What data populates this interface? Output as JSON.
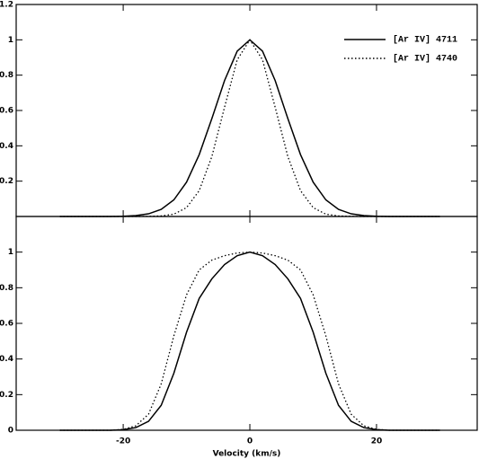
{
  "chart_data": [
    {
      "type": "line",
      "x": [
        -30,
        -28,
        -26,
        -24,
        -22,
        -20,
        -18,
        -16,
        -14,
        -12,
        -10,
        -8,
        -6,
        -4,
        -2,
        0,
        2,
        4,
        6,
        8,
        10,
        12,
        14,
        16,
        18,
        20,
        22,
        24,
        26,
        28,
        30
      ],
      "series": [
        {
          "name": "[Ar IV] 4711",
          "color": "#000000",
          "dash": "solid",
          "values": [
            0,
            0,
            0,
            0,
            0,
            0.001,
            0.005,
            0.015,
            0.04,
            0.094,
            0.194,
            0.35,
            0.554,
            0.769,
            0.936,
            1,
            0.936,
            0.769,
            0.554,
            0.35,
            0.194,
            0.094,
            0.04,
            0.015,
            0.005,
            0.001,
            0,
            0,
            0,
            0,
            0
          ]
        },
        {
          "name": "[Ar IV] 4740",
          "color": "#000000",
          "dash": "dotted",
          "values": [
            0,
            0,
            0,
            0,
            0,
            0,
            0,
            0.001,
            0.003,
            0.013,
            0.05,
            0.146,
            0.339,
            0.618,
            0.887,
            1,
            0.887,
            0.618,
            0.339,
            0.146,
            0.05,
            0.013,
            0.003,
            0.001,
            0,
            0,
            0,
            0,
            0,
            0,
            0
          ]
        }
      ],
      "xlim": [
        -36.9,
        35.9
      ],
      "ylim": [
        0,
        1.2
      ],
      "yticks": [
        0.2,
        0.4,
        0.6,
        0.8,
        1,
        1.2
      ],
      "legend": "top-right"
    },
    {
      "type": "line",
      "x": [
        -30,
        -28,
        -26,
        -24,
        -22,
        -20,
        -18,
        -16,
        -14,
        -12,
        -10,
        -8,
        -6,
        -4,
        -2,
        0,
        2,
        4,
        6,
        8,
        10,
        12,
        14,
        16,
        18,
        20,
        22,
        24,
        26,
        28,
        30
      ],
      "series": [
        {
          "color": "#000000",
          "dash": "solid",
          "values": [
            0,
            0,
            0,
            0,
            0,
            0.003,
            0.015,
            0.05,
            0.14,
            0.32,
            0.55,
            0.74,
            0.85,
            0.93,
            0.98,
            1,
            0.98,
            0.93,
            0.85,
            0.74,
            0.55,
            0.32,
            0.14,
            0.05,
            0.015,
            0.003,
            0,
            0,
            0,
            0,
            0
          ]
        },
        {
          "color": "#000000",
          "dash": "dotted",
          "values": [
            0,
            0,
            0,
            0,
            0,
            0.005,
            0.025,
            0.09,
            0.26,
            0.53,
            0.76,
            0.9,
            0.955,
            0.98,
            0.995,
            1,
            0.995,
            0.98,
            0.955,
            0.9,
            0.76,
            0.53,
            0.26,
            0.09,
            0.025,
            0.005,
            0,
            0,
            0,
            0,
            0
          ]
        }
      ],
      "xlim": [
        -36.9,
        35.9
      ],
      "ylim": [
        0,
        1.2
      ],
      "yticks": [
        0,
        0.2,
        0.4,
        0.6,
        0.8,
        1
      ],
      "xticks": [
        -20,
        0,
        20
      ],
      "xlabel": "Velocity (km/s)"
    }
  ]
}
